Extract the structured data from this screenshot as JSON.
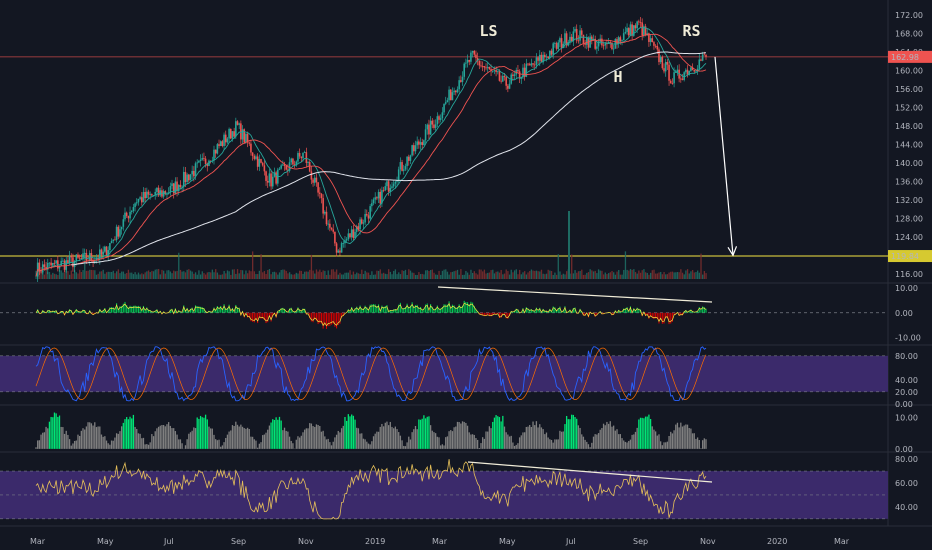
{
  "chart_data": {
    "type": "candlestick",
    "colors": {
      "background": "#131722",
      "up": "#26a69a",
      "down": "#ef5350",
      "ma_fast": "#26a69a",
      "ma_mid": "#ef5350",
      "ma_slow": "#e0e3eb",
      "band_fill": "#3b2a6b",
      "histogram_green": "#00e676",
      "histogram_grey": "#808080",
      "annotation": "#f0ecd8",
      "resistance_line": "#ef5350",
      "support_line": "#f5e642"
    },
    "price_panel": {
      "ylim": [
        114,
        174
      ],
      "y_ticks": [
        "172.00",
        "168.00",
        "164.00",
        "160.00",
        "156.00",
        "152.00",
        "148.00",
        "144.00",
        "140.00",
        "136.00",
        "132.00",
        "128.00",
        "124.00",
        "120.00",
        "116.00"
      ],
      "y_tick_values": [
        172,
        168,
        164,
        160,
        156,
        152,
        148,
        144,
        140,
        136,
        132,
        128,
        124,
        120,
        116
      ],
      "current_price": "162.98",
      "horizontal_line_label": "119.84",
      "horizontal_line_value": 119.84,
      "annotations": [
        {
          "label": "LS",
          "x": "2019-04",
          "y": 167.5
        },
        {
          "label": "H",
          "x": "2019-08",
          "y": 157.5
        },
        {
          "label": "RS",
          "x": "2019-10",
          "y": 167.5
        }
      ],
      "close_path": {
        "x": [
          "2018-03",
          "2018-05",
          "2018-06",
          "2018-07",
          "2018-08",
          "2018-09",
          "2018-10",
          "2018-11",
          "2018-12",
          "2019-01",
          "2019-02",
          "2019-03",
          "2019-04",
          "2019-05",
          "2019-06",
          "2019-07",
          "2019-08",
          "2019-09",
          "2019-10",
          "2019-11"
        ],
        "y": [
          117,
          120,
          132,
          134,
          140,
          148,
          136,
          142,
          121,
          130,
          140,
          150,
          163,
          157,
          162,
          168,
          165,
          170,
          158,
          163
        ]
      },
      "projection": {
        "from": [
          "2019-11",
          162.98
        ],
        "to": [
          "2019-11",
          120
        ]
      }
    },
    "oscillator_panel": {
      "y_ticks": [
        "10.00",
        "0.00",
        "-10.00"
      ],
      "y_tick_values": [
        10,
        0,
        -10
      ]
    },
    "stochastic_panel": {
      "y_ticks": [
        "80.00",
        "40.00",
        "20.00",
        "0.00"
      ],
      "y_tick_values": [
        80,
        40,
        20,
        0
      ]
    },
    "volume_panel": {
      "y_ticks": [
        "10.00",
        "0.00"
      ],
      "y_tick_values": [
        10,
        0
      ]
    },
    "rsi_panel": {
      "y_ticks": [
        "80.00",
        "60.00",
        "40.00"
      ],
      "y_tick_values": [
        80,
        60,
        40
      ]
    },
    "x_axis": {
      "labels": [
        "Mar",
        "May",
        "Jul",
        "Sep",
        "Nov",
        "2019",
        "Mar",
        "May",
        "Jul",
        "Sep",
        "Nov",
        "2020",
        "Mar"
      ]
    }
  }
}
